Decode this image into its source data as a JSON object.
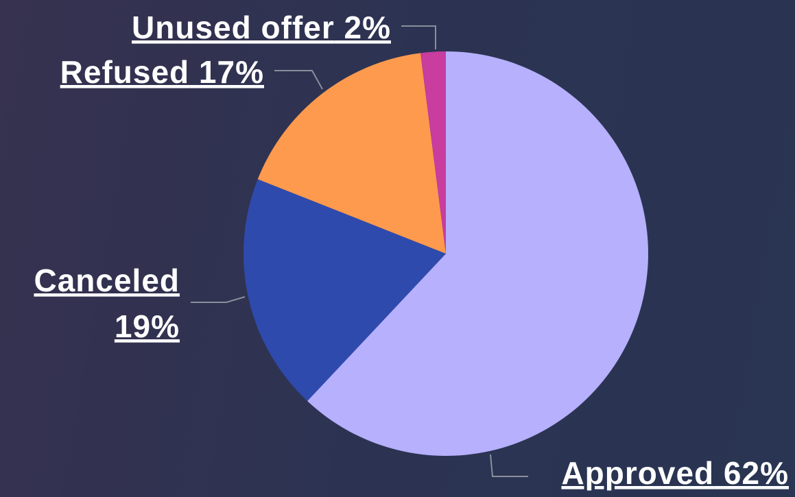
{
  "chart_data": {
    "type": "pie",
    "categories": [
      "Approved",
      "Canceled",
      "Refused",
      "Unused offer"
    ],
    "values": [
      62,
      19,
      17,
      2
    ],
    "value_labels": [
      "62%",
      "19%",
      "17%",
      "2%"
    ],
    "colors": [
      "#b6b0fd",
      "#2f4aad",
      "#fe9a4e",
      "#c83d9e"
    ]
  }
}
